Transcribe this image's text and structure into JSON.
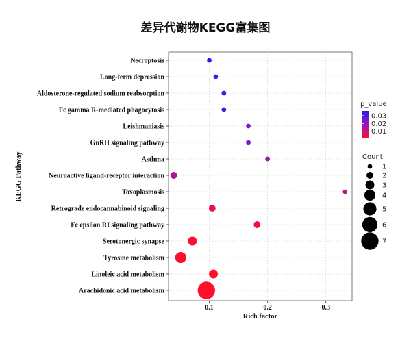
{
  "chart_data": {
    "type": "scatter",
    "title": "差异代谢物KEGG富集图",
    "xlabel": "Rich factor",
    "ylabel": "KEGG Pathway",
    "xlim": [
      0.03,
      0.345
    ],
    "xticks": [
      0.1,
      0.2,
      0.3
    ],
    "xtick_labels": [
      "0.1",
      "0.2",
      "0.3"
    ],
    "grid": true,
    "legend_position": "right",
    "color_scale": {
      "title": "p_value",
      "ticks": [
        0.03,
        0.02,
        0.01
      ],
      "tick_labels": [
        "0.03",
        "0.02",
        "0.01"
      ],
      "low_color": "#ff0000",
      "high_color": "#0000ff"
    },
    "size_legend": {
      "title": "Count",
      "values": [
        1,
        2,
        3,
        4,
        5,
        6,
        7
      ],
      "labels": [
        "1",
        "2",
        "3",
        "4",
        "5",
        "6",
        "7"
      ]
    },
    "points": [
      {
        "pathway": "Necroptosis",
        "rich_factor": 0.1,
        "count": 1,
        "p_value": 0.036
      },
      {
        "pathway": "Long-term depression",
        "rich_factor": 0.111,
        "count": 1,
        "p_value": 0.033
      },
      {
        "pathway": "Aldosterone-regulated sodium reabsorption",
        "rich_factor": 0.125,
        "count": 1,
        "p_value": 0.031
      },
      {
        "pathway": "Fc gamma R-mediated phagocytosis",
        "rich_factor": 0.125,
        "count": 1,
        "p_value": 0.031
      },
      {
        "pathway": "Leishmaniasis",
        "rich_factor": 0.167,
        "count": 1,
        "p_value": 0.021
      },
      {
        "pathway": "GnRH signaling pathway",
        "rich_factor": 0.167,
        "count": 1,
        "p_value": 0.021
      },
      {
        "pathway": "Asthma",
        "rich_factor": 0.2,
        "count": 1,
        "p_value": 0.016
      },
      {
        "pathway": "Neuroactive ligand-receptor interaction",
        "rich_factor": 0.039,
        "count": 2,
        "p_value": 0.013
      },
      {
        "pathway": "Toxoplasmosis",
        "rich_factor": 0.333,
        "count": 1,
        "p_value": 0.011
      },
      {
        "pathway": "Retrograde endocannabinoid signaling",
        "rich_factor": 0.105,
        "count": 2,
        "p_value": 0.004
      },
      {
        "pathway": "Fc epsilon RI signaling pathway",
        "rich_factor": 0.182,
        "count": 2,
        "p_value": 0.003
      },
      {
        "pathway": "Serotonergic synapse",
        "rich_factor": 0.071,
        "count": 3,
        "p_value": 0.002
      },
      {
        "pathway": "Tyrosine metabolism",
        "rich_factor": 0.051,
        "count": 4,
        "p_value": 0.001
      },
      {
        "pathway": "Linoleic acid metabolism",
        "rich_factor": 0.107,
        "count": 3,
        "p_value": 0.001
      },
      {
        "pathway": "Arachidonic acid metabolism",
        "rich_factor": 0.095,
        "count": 7,
        "p_value": 0.0001
      }
    ]
  }
}
